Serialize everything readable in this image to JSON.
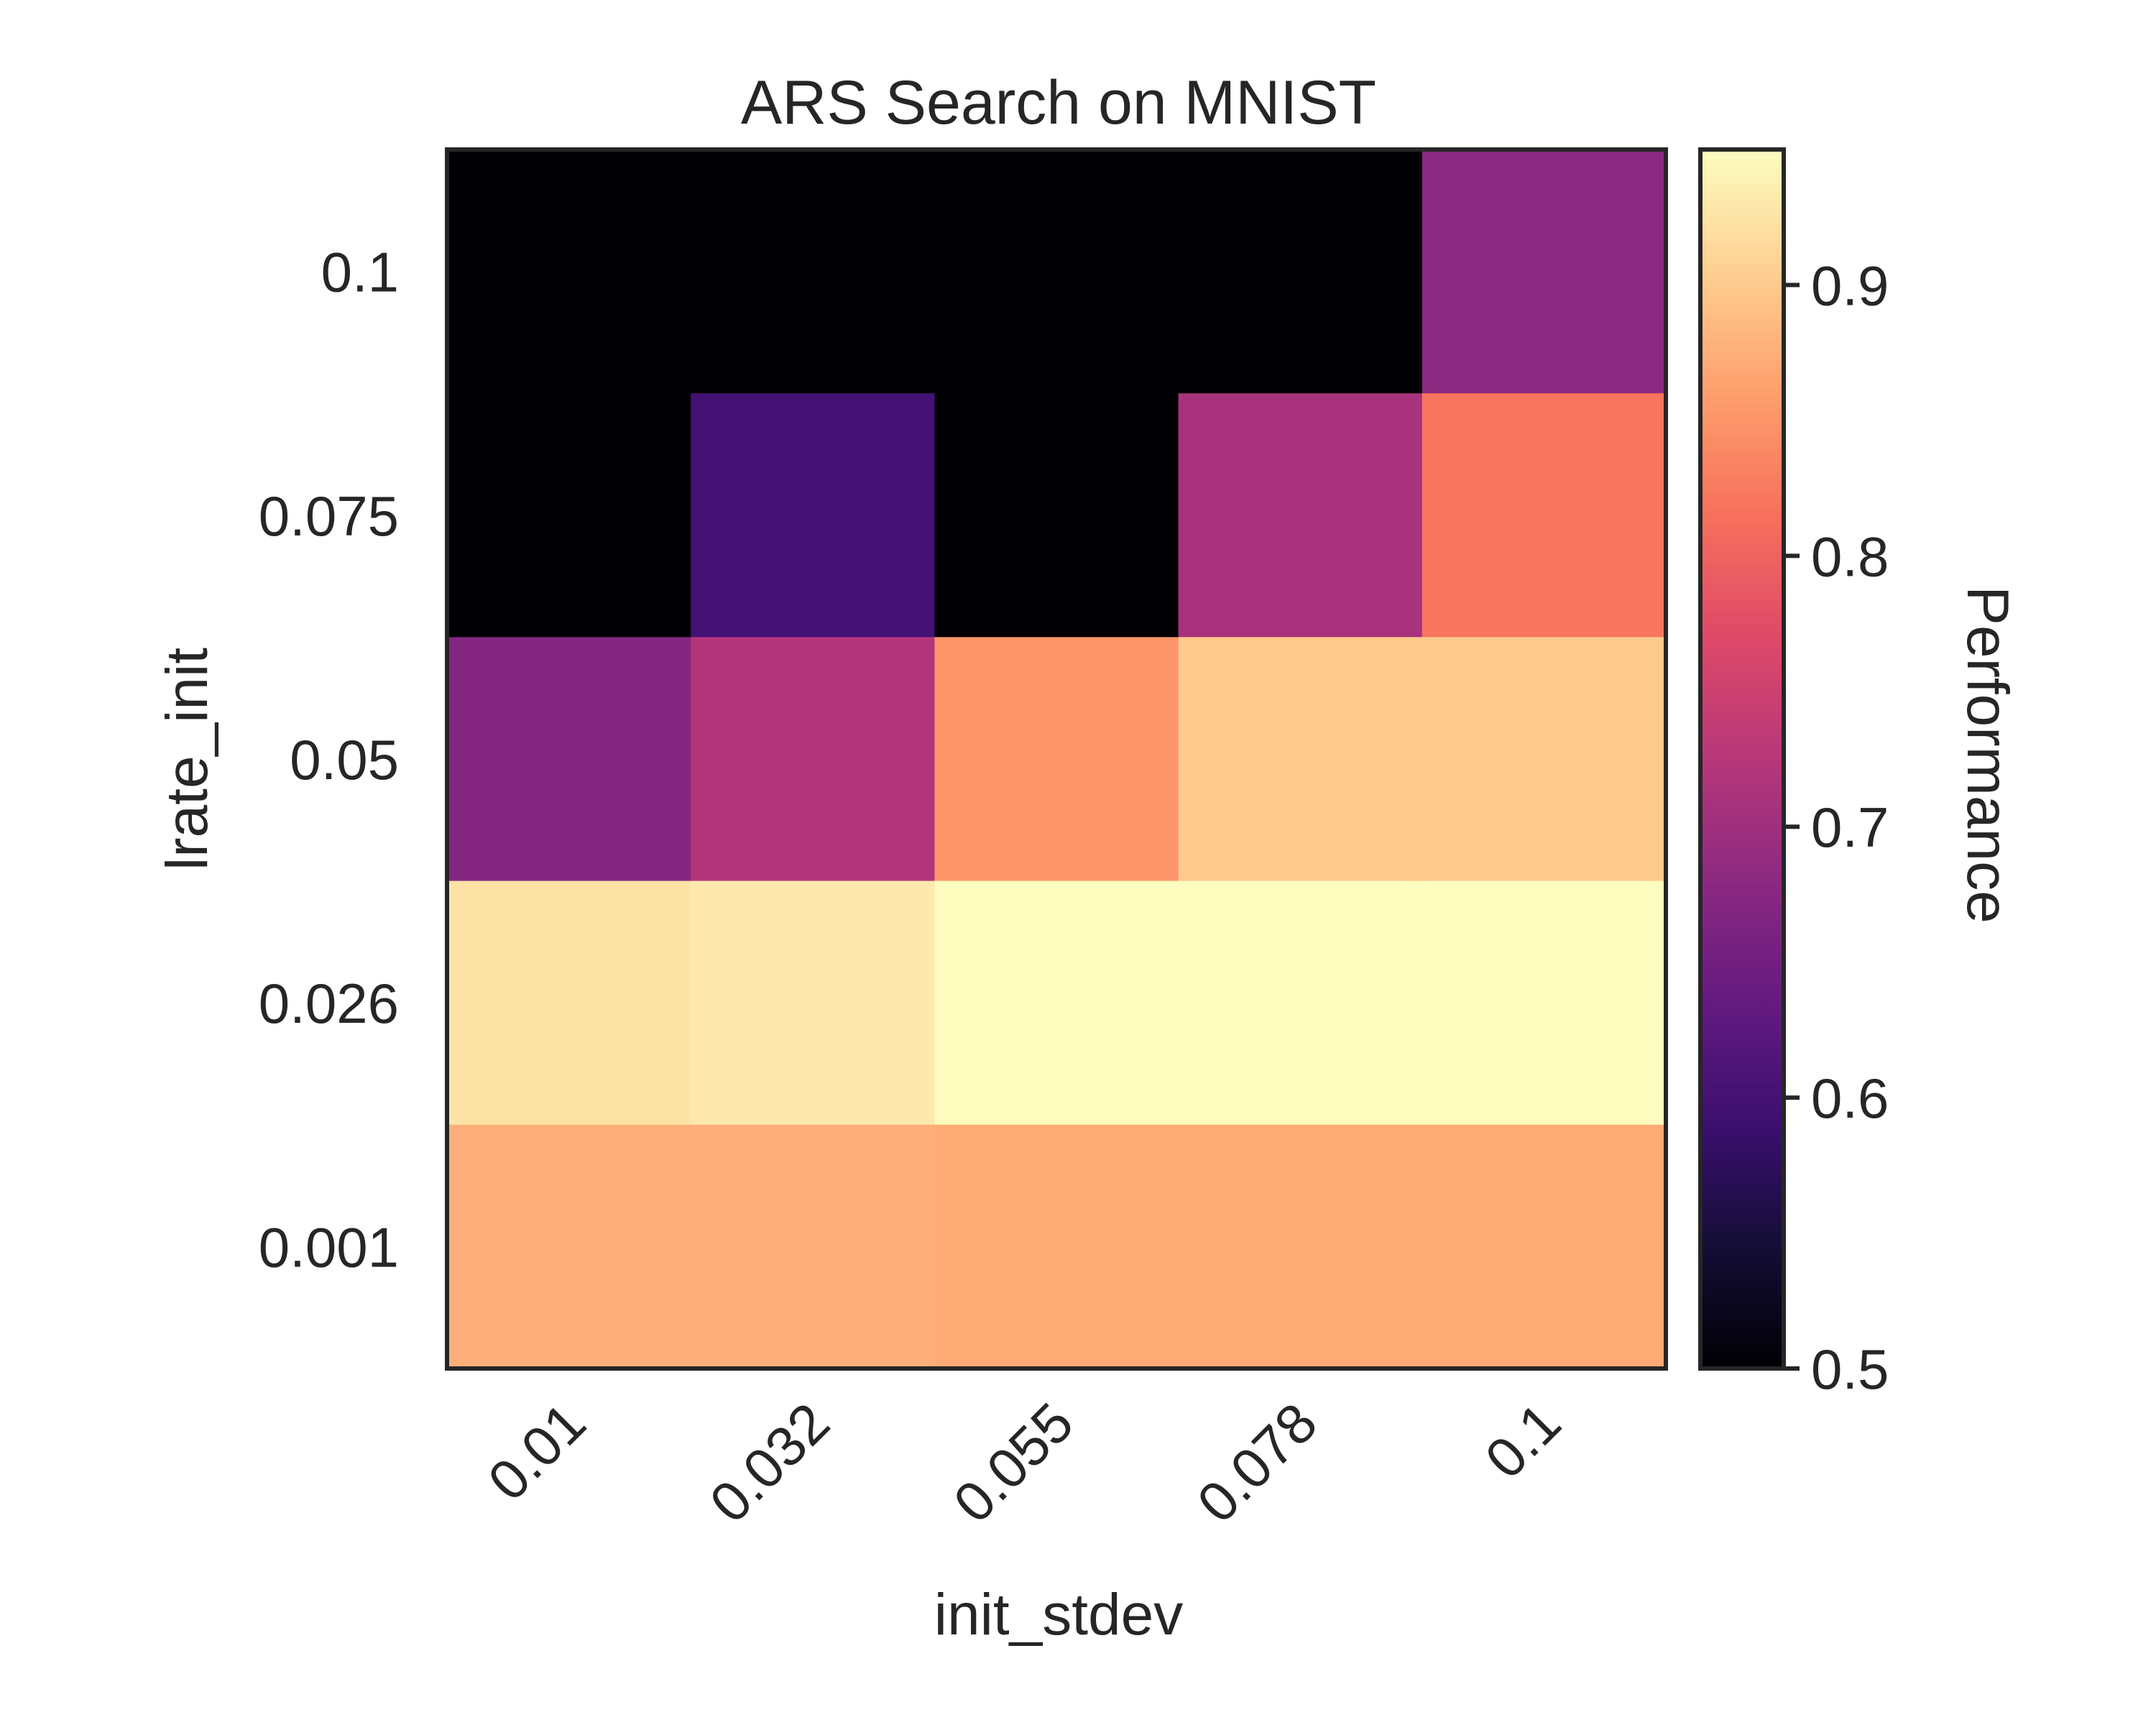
{
  "chart_data": {
    "type": "heatmap",
    "title": "ARS Search on MNIST",
    "xlabel": "init_stdev",
    "ylabel": "lrate_init",
    "x_categories": [
      "0.01",
      "0.032",
      "0.055",
      "0.078",
      "0.1"
    ],
    "y_categories": [
      "0.1",
      "0.075",
      "0.05",
      "0.026",
      "0.001"
    ],
    "values": [
      [
        0.5,
        0.5,
        0.5,
        0.5,
        0.68
      ],
      [
        0.5,
        0.6,
        0.5,
        0.71,
        0.82
      ],
      [
        0.67,
        0.72,
        0.85,
        0.9,
        0.9
      ],
      [
        0.925,
        0.93,
        0.95,
        0.95,
        0.95
      ],
      [
        0.875,
        0.875,
        0.87,
        0.87,
        0.87
      ]
    ],
    "colorbar": {
      "label": "Performance",
      "range": [
        0.5,
        0.95
      ],
      "ticks": [
        "0.5",
        "0.6",
        "0.7",
        "0.8",
        "0.9"
      ],
      "colormap": "magma"
    },
    "grid": false
  }
}
